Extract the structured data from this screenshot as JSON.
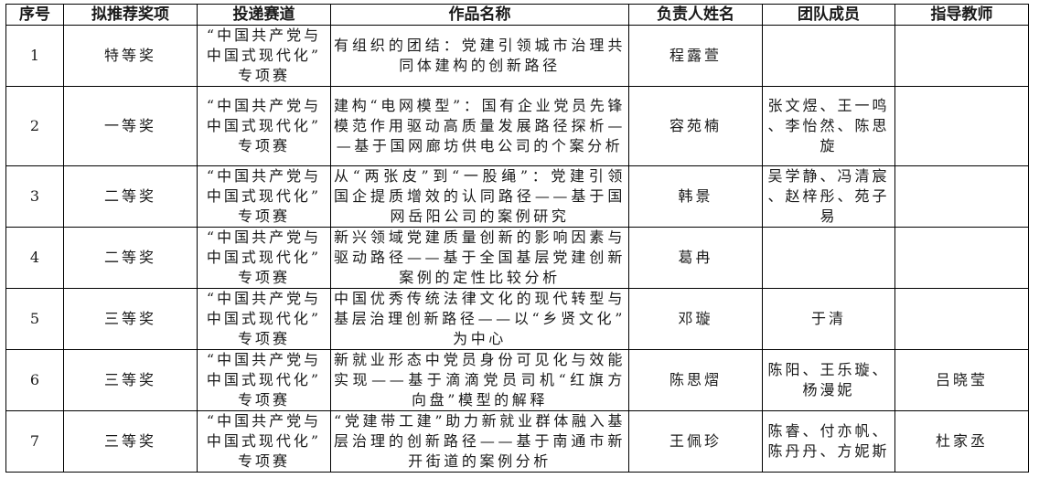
{
  "headers": [
    "序号",
    "拟推荐奖项",
    "投递赛道",
    "作品名称",
    "负责人姓名",
    "团队成员",
    "指导教师"
  ],
  "rows": [
    {
      "no": "1",
      "award": "特等奖",
      "track": "“中国共产党与中国式现代化”专项赛",
      "title": "有组织的团结：党建引领城市治理共同体建构的创新路径",
      "leader": "程露萱",
      "team": "",
      "advisor": ""
    },
    {
      "no": "2",
      "award": "一等奖",
      "track": "“中国共产党与中国式现代化”专项赛",
      "title": "建构“电网模型”：国有企业党员先锋模范作用驱动高质量发展路径探析——基于国网廊坊供电公司的个案分析",
      "leader": "容苑楠",
      "team": "张文煜、王一鸣、李怡然、陈思旋",
      "advisor": ""
    },
    {
      "no": "3",
      "award": "二等奖",
      "track": "“中国共产党与中国式现代化”专项赛",
      "title": "从“两张皮”到“一股绳”：党建引领国企提质增效的认同路径——基于国网岳阳公司的案例研究",
      "leader": "韩景",
      "team": "吴学静、冯清宸、赵梓彤、苑子易",
      "advisor": ""
    },
    {
      "no": "4",
      "award": "二等奖",
      "track": "“中国共产党与中国式现代化”专项赛",
      "title": "新兴领域党建质量创新的影响因素与驱动路径——基于全国基层党建创新案例的定性比较分析",
      "leader": "葛冉",
      "team": "",
      "advisor": ""
    },
    {
      "no": "5",
      "award": "三等奖",
      "track": "“中国共产党与中国式现代化”专项赛",
      "title": "中国优秀传统法律文化的现代转型与基层治理创新路径——以“乡贤文化”为中心",
      "leader": "邓璇",
      "team": "于清",
      "advisor": ""
    },
    {
      "no": "6",
      "award": "三等奖",
      "track": "“中国共产党与中国式现代化”专项赛",
      "title": "新就业形态中党员身份可见化与效能实现——基于滴滴党员司机“红旗方向盘”模型的解释",
      "leader": "陈思熠",
      "team": "陈阳、王乐璇、杨漫妮",
      "advisor": "吕晓莹"
    },
    {
      "no": "7",
      "award": "三等奖",
      "track": "“中国共产党与中国式现代化”专项赛",
      "title": "“党建带工建”助力新就业群体融入基层治理的创新路径——基于南通市新开街道的案例分析",
      "leader": "王佩珍",
      "team": "陈睿、付亦帆、陈丹丹、方妮斯",
      "advisor": "杜家丞"
    }
  ]
}
